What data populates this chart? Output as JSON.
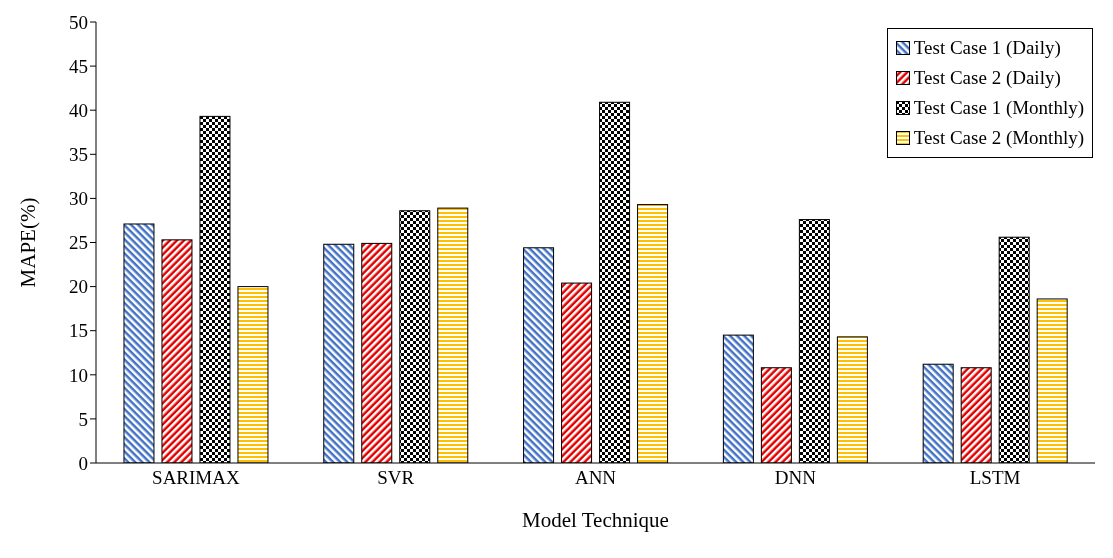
{
  "chart_data": {
    "type": "bar",
    "xlabel": "Model Technique",
    "ylabel": "MAPE(%)",
    "categories": [
      "SARIMAX",
      "SVR",
      "ANN",
      "DNN",
      "LSTM"
    ],
    "series": [
      {
        "name": "Test Case 1 (Daily)",
        "color": "#4472c4",
        "values": [
          27.1,
          24.8,
          24.4,
          14.5,
          11.2
        ]
      },
      {
        "name": "Test Case 2 (Daily)",
        "color": "#e00000",
        "values": [
          25.3,
          24.9,
          20.4,
          10.8,
          10.8
        ]
      },
      {
        "name": "Test Case 1 (Monthly)",
        "color": "#000000",
        "values": [
          39.3,
          28.6,
          40.9,
          27.6,
          25.6
        ]
      },
      {
        "name": "Test Case 2 (Monthly)",
        "color": "#ffc000",
        "values": [
          20.0,
          28.9,
          29.3,
          14.3,
          18.6
        ]
      }
    ],
    "ylim": [
      0,
      50
    ],
    "yticks": [
      0,
      5,
      10,
      15,
      20,
      25,
      30,
      35,
      40,
      45,
      50
    ],
    "grid": false,
    "legend": "top right"
  }
}
